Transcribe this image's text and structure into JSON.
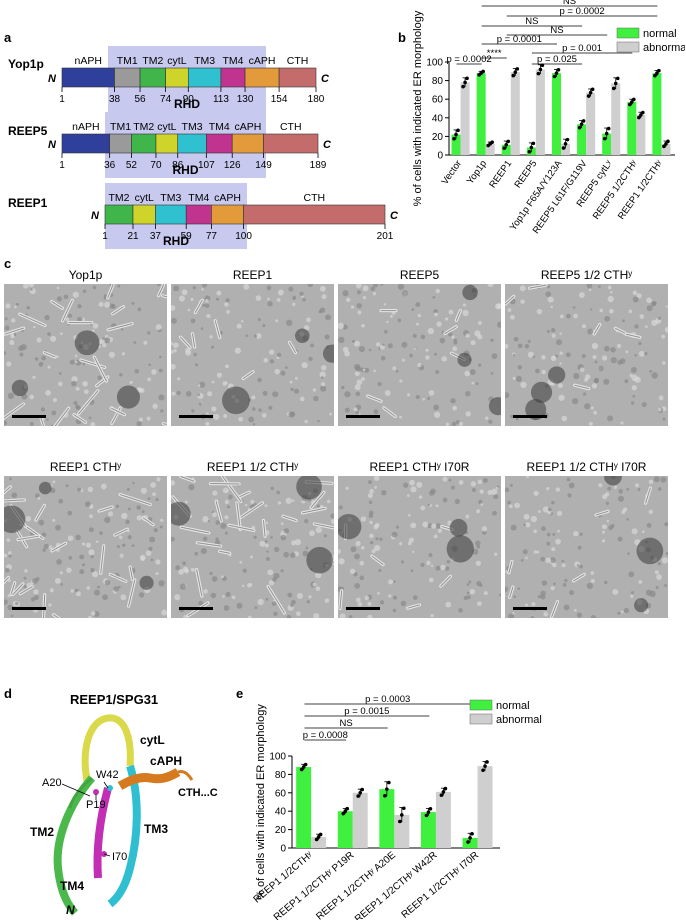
{
  "panel_labels": {
    "a": "a",
    "b": "b",
    "c": "c",
    "d": "d",
    "e": "e"
  },
  "panel_a": {
    "proteins": [
      {
        "name": "Yop1p",
        "domains": [
          {
            "label": "nAPH",
            "start": 1,
            "end": 38,
            "color": "#2e3f9c"
          },
          {
            "label": "TM1",
            "start": 38,
            "end": 56,
            "color": "#9a9a9a"
          },
          {
            "label": "TM2",
            "start": 56,
            "end": 74,
            "color": "#3fb54a"
          },
          {
            "label": "cytL",
            "start": 74,
            "end": 90,
            "color": "#cfd42a"
          },
          {
            "label": "TM3",
            "start": 90,
            "end": 113,
            "color": "#2fc1cf"
          },
          {
            "label": "TM4",
            "start": 113,
            "end": 130,
            "color": "#c0338f"
          },
          {
            "label": "cAPH",
            "start": 130,
            "end": 154,
            "color": "#e29a3a"
          },
          {
            "label": "CTH",
            "start": 154,
            "end": 180,
            "color": "#c46b6b"
          }
        ],
        "ticks": [
          "1",
          "38",
          "56",
          "74",
          "90",
          "113",
          "130",
          "154",
          "180"
        ],
        "n": "N",
        "c": "C",
        "rhd": "RHD"
      },
      {
        "name": "REEP5",
        "domains": [
          {
            "label": "nAPH",
            "start": 1,
            "end": 36,
            "color": "#2e3f9c"
          },
          {
            "label": "TM1",
            "start": 36,
            "end": 52,
            "color": "#9a9a9a"
          },
          {
            "label": "TM2",
            "start": 52,
            "end": 70,
            "color": "#3fb54a"
          },
          {
            "label": "cytL",
            "start": 70,
            "end": 86,
            "color": "#cfd42a"
          },
          {
            "label": "TM3",
            "start": 86,
            "end": 107,
            "color": "#2fc1cf"
          },
          {
            "label": "TM4",
            "start": 107,
            "end": 126,
            "color": "#c0338f"
          },
          {
            "label": "cAPH",
            "start": 126,
            "end": 149,
            "color": "#e29a3a"
          },
          {
            "label": "CTH",
            "start": 149,
            "end": 189,
            "color": "#c46b6b"
          }
        ],
        "ticks": [
          "1",
          "36",
          "52",
          "70",
          "86",
          "107",
          "126",
          "149",
          "189"
        ],
        "n": "N",
        "c": "C",
        "rhd": "RHD"
      },
      {
        "name": "REEP1",
        "domains": [
          {
            "label": "TM2",
            "start": 1,
            "end": 21,
            "color": "#3fb54a"
          },
          {
            "label": "cytL",
            "start": 21,
            "end": 37,
            "color": "#cfd42a"
          },
          {
            "label": "TM3",
            "start": 37,
            "end": 59,
            "color": "#2fc1cf"
          },
          {
            "label": "TM4",
            "start": 59,
            "end": 77,
            "color": "#c0338f"
          },
          {
            "label": "cAPH",
            "start": 77,
            "end": 100,
            "color": "#e29a3a"
          },
          {
            "label": "CTH",
            "start": 100,
            "end": 201,
            "color": "#c46b6b"
          }
        ],
        "ticks": [
          "1",
          "21",
          "37",
          "59",
          "77",
          "100",
          "201"
        ],
        "n": "N",
        "c": "C",
        "rhd": "RHD"
      }
    ]
  },
  "chart_data": [
    {
      "type": "bar",
      "panel": "b",
      "ylabel": "% of cells with indicated ER morphology",
      "ylim": [
        0,
        100
      ],
      "yticks": [
        "0",
        "20",
        "40",
        "60",
        "80",
        "100"
      ],
      "categories": [
        "Vector",
        "Yop1p",
        "REEP1",
        "REEP5",
        "Yop1p F65A/Y123A",
        "REEP5 L61F/G119V",
        "REEP5 cytLʸ",
        "REEP5 1/2CTHʸ",
        "REEP1 1/2CTHʸ"
      ],
      "series": [
        {
          "name": "normal",
          "color": "#3ff03f",
          "values": [
            22,
            88,
            11,
            8,
            88,
            33,
            23,
            57,
            88
          ],
          "errors": [
            5,
            2,
            4,
            5,
            4,
            4,
            6,
            3,
            3
          ]
        },
        {
          "name": "abnormal",
          "color": "#cfcfcf",
          "values": [
            78,
            12,
            89,
            92,
            12,
            67,
            77,
            43,
            12
          ],
          "errors": [
            5,
            2,
            4,
            5,
            5,
            4,
            6,
            3,
            3
          ]
        }
      ],
      "legend_position": "top-right",
      "significance": [
        "NS",
        "p = 0.0002",
        "NS",
        "NS",
        "p = 0.0001",
        "p = 0.001",
        "****",
        "p = 0.025",
        "p = 0.0002"
      ]
    },
    {
      "type": "bar",
      "panel": "e",
      "ylabel": "% of cells with indicated ER morphology",
      "ylim": [
        0,
        100
      ],
      "yticks": [
        "0",
        "20",
        "40",
        "60",
        "80",
        "100"
      ],
      "categories": [
        "REEP1 1/2CTHʸ",
        "REEP1 1/2CTHʸ P19R",
        "REEP1 1/2CTHʸ A20E",
        "REEP1 1/2CTHʸ W42R",
        "REEP1 1/2CTHʸ I70R"
      ],
      "series": [
        {
          "name": "normal",
          "color": "#3ff03f",
          "values": [
            88,
            40,
            64,
            39,
            11
          ],
          "errors": [
            3,
            3,
            8,
            4,
            5
          ]
        },
        {
          "name": "abnormal",
          "color": "#cfcfcf",
          "values": [
            12,
            60,
            36,
            61,
            89
          ],
          "errors": [
            3,
            4,
            8,
            4,
            5
          ]
        }
      ],
      "legend_position": "top-right",
      "significance": [
        "p = 0.0003",
        "p = 0.0015",
        "NS",
        "p = 0.0008"
      ]
    }
  ],
  "panel_c": {
    "titles": [
      "Yop1p",
      "REEP1",
      "REEP5",
      "REEP5 1/2 CTHʸ",
      "REEP1 CTHʸ",
      "REEP1 1/2 CTHʸ",
      "REEP1 CTHʸ I70R",
      "REEP1 1/2 CTHʸ I70R"
    ]
  },
  "panel_d": {
    "title": "REEP1/SPG31",
    "labels": {
      "cytl": "cytL",
      "capH": "cAPH",
      "cth": "CTH...C",
      "a20": "A20",
      "w42": "W42",
      "p19": "P19",
      "tm2": "TM2",
      "tm3": "TM3",
      "tm4": "TM4",
      "i70": "I70",
      "n": "N"
    }
  }
}
